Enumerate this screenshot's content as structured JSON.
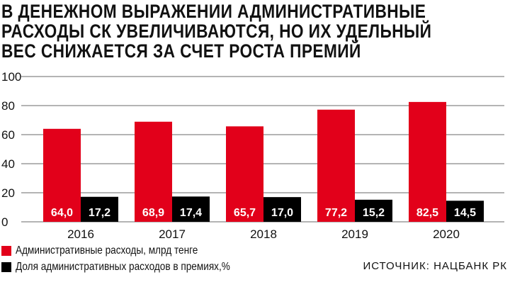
{
  "chart_data": {
    "type": "bar",
    "title": [
      "В ДЕНЕЖНОМ ВЫРАЖЕНИИ АДМИНИСТРАТИВНЫЕ",
      "РАСХОДЫ СК УВЕЛИЧИВАЮТСЯ, НО ИХ УДЕЛЬНЫЙ",
      "ВЕС СНИЖАЕТСЯ ЗА СЧЕТ РОСТА ПРЕМИЙ"
    ],
    "categories": [
      "2016",
      "2017",
      "2018",
      "2019",
      "2020"
    ],
    "series": [
      {
        "name": "Административные расходы, млрд тенге",
        "color": "#e2001a",
        "values": [
          64.0,
          68.9,
          65.7,
          77.2,
          82.5
        ],
        "labels": [
          "64,0",
          "68,9",
          "65,7",
          "77,2",
          "82,5"
        ]
      },
      {
        "name": "Доля административных расходов в премиях,%",
        "color": "#000000",
        "values": [
          17.2,
          17.4,
          17.0,
          15.2,
          14.5
        ],
        "labels": [
          "17,2",
          "17,4",
          "17,0",
          "15,2",
          "14,5"
        ]
      }
    ],
    "yticks": [
      "0",
      "20",
      "40",
      "60",
      "80",
      "100"
    ],
    "ylim": [
      0,
      100
    ],
    "grid": true,
    "legend": "bottom-left",
    "source": "ИСТОЧНИК: НАЦБАНК РК"
  }
}
